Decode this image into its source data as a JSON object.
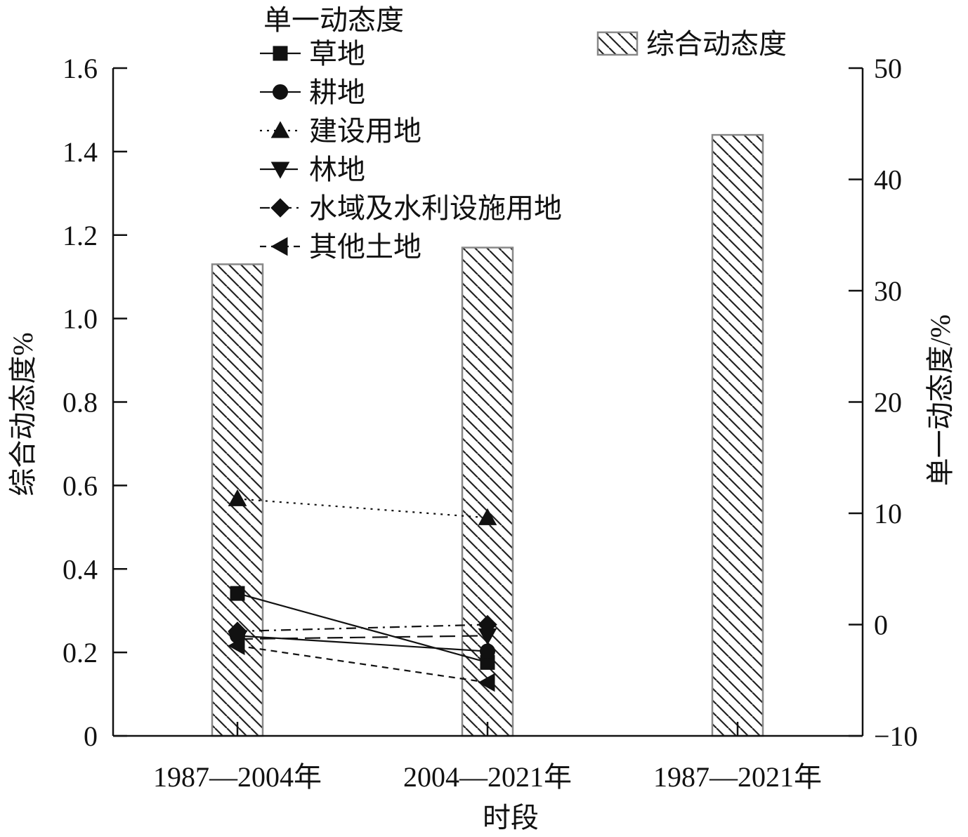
{
  "chart_data": {
    "type": "bar",
    "categories": [
      "1987—2004年",
      "2004—2021年",
      "1987—2021年"
    ],
    "xlabel": "时段",
    "ylabel_left": "综合动态度%",
    "ylabel_right": "单一动态度/%",
    "ylim_left": [
      0,
      1.6
    ],
    "yticks_left": [
      0,
      0.2,
      0.4,
      0.6,
      0.8,
      1.0,
      1.2,
      1.4,
      1.6
    ],
    "ytick_labels_left": [
      "0",
      "0.2",
      "0.4",
      "0.6",
      "0.8",
      "1.0",
      "1.2",
      "1.4",
      "1.6"
    ],
    "ylim_right": [
      -10,
      50
    ],
    "yticks_right": [
      -10,
      0,
      10,
      20,
      30,
      40,
      50
    ],
    "ytick_labels_right": [
      "−10",
      "0",
      "10",
      "20",
      "30",
      "40",
      "50"
    ],
    "bar_series": {
      "name": "综合动态度",
      "values": [
        1.13,
        1.17,
        1.44
      ],
      "pattern": "diagonal-hatch"
    },
    "line_legend_title": "单一动态度",
    "line_series": [
      {
        "name": "草地",
        "marker": "square",
        "dash": "solid",
        "values": [
          2.8,
          -3.4
        ]
      },
      {
        "name": "耕地",
        "marker": "circle",
        "dash": "solid",
        "values": [
          -1.0,
          -2.4
        ]
      },
      {
        "name": "建设用地",
        "marker": "triangle-up",
        "dash": "dotted",
        "values": [
          11.3,
          9.6
        ]
      },
      {
        "name": "林地",
        "marker": "triangle-down",
        "dash": "long-dash",
        "values": [
          -1.3,
          -1.0
        ]
      },
      {
        "name": "水域及水利设施用地",
        "marker": "diamond",
        "dash": "dash-dot",
        "values": [
          -0.6,
          0.0
        ]
      },
      {
        "name": "其他土地",
        "marker": "triangle-left",
        "dash": "dashed",
        "values": [
          -1.9,
          -5.2
        ]
      }
    ],
    "legend_position": "top"
  }
}
